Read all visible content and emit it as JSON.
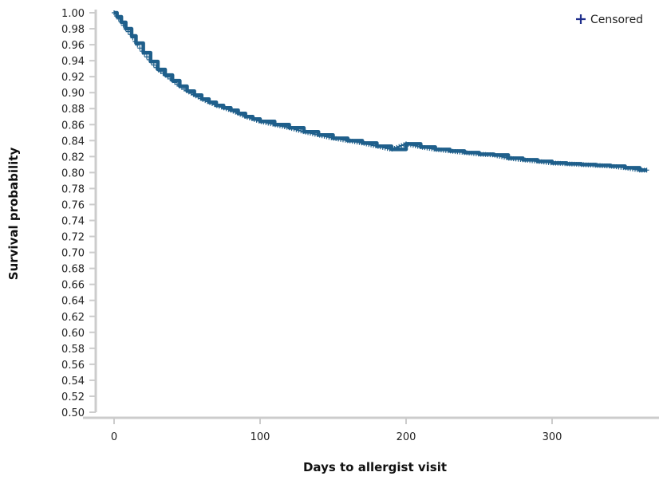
{
  "chart_data": {
    "type": "line",
    "title": "",
    "xlabel": "Days to allergist visit",
    "ylabel": "Survival probability",
    "xlim": [
      -10,
      370
    ],
    "ylim": [
      0.5,
      1.0
    ],
    "x_ticks": [
      0,
      100,
      200,
      300
    ],
    "y_ticks": [
      0.5,
      0.52,
      0.54,
      0.56,
      0.58,
      0.6,
      0.62,
      0.64,
      0.66,
      0.68,
      0.7,
      0.72,
      0.74,
      0.76,
      0.78,
      0.8,
      0.82,
      0.84,
      0.86,
      0.88,
      0.9,
      0.92,
      0.94,
      0.96,
      0.98,
      1.0
    ],
    "grid": false,
    "legend": {
      "position": "top-right",
      "entries": [
        "Censored"
      ]
    },
    "colors": {
      "line": "#1f5f8b",
      "legend_marker": "#1f2e8c",
      "axis": "#cccccc"
    },
    "series": [
      {
        "x": [
          0,
          2,
          5,
          8,
          12,
          15,
          20,
          25,
          30,
          35,
          40,
          45,
          50,
          55,
          60,
          65,
          70,
          75,
          80,
          85,
          90,
          95,
          100,
          110,
          120,
          130,
          140,
          150,
          160,
          170,
          180,
          190,
          200,
          210,
          220,
          230,
          240,
          250,
          260,
          270,
          280,
          290,
          300,
          310,
          320,
          330,
          340,
          350,
          360,
          365
        ],
        "y": [
          1.0,
          0.995,
          0.988,
          0.98,
          0.971,
          0.962,
          0.95,
          0.939,
          0.929,
          0.922,
          0.915,
          0.908,
          0.902,
          0.897,
          0.892,
          0.888,
          0.884,
          0.881,
          0.878,
          0.874,
          0.87,
          0.867,
          0.864,
          0.86,
          0.856,
          0.851,
          0.847,
          0.843,
          0.84,
          0.837,
          0.833,
          0.829,
          0.836,
          0.832,
          0.829,
          0.827,
          0.825,
          0.823,
          0.822,
          0.818,
          0.816,
          0.814,
          0.812,
          0.811,
          0.81,
          0.809,
          0.808,
          0.806,
          0.803,
          0.803
        ]
      }
    ]
  }
}
